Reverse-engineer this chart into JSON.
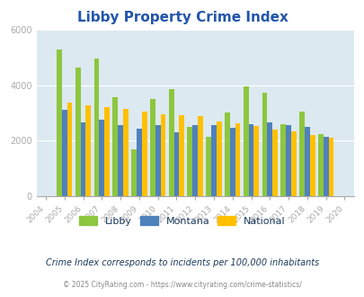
{
  "title": "Libby Property Crime Index",
  "all_years": [
    2004,
    2005,
    2006,
    2007,
    2008,
    2009,
    2010,
    2011,
    2012,
    2013,
    2014,
    2015,
    2016,
    2017,
    2018,
    2019,
    2020
  ],
  "data_years": [
    2005,
    2006,
    2007,
    2008,
    2009,
    2010,
    2011,
    2012,
    2013,
    2014,
    2015,
    2016,
    2017,
    2018,
    2019
  ],
  "libby": [
    5300,
    4650,
    4950,
    3550,
    1680,
    3500,
    3850,
    2480,
    2150,
    3020,
    3950,
    3730,
    2580,
    3030,
    2220
  ],
  "montana": [
    3100,
    2660,
    2750,
    2570,
    2430,
    2550,
    2290,
    2560,
    2560,
    2450,
    2590,
    2660,
    2560,
    2480,
    2150
  ],
  "national": [
    3380,
    3280,
    3220,
    3130,
    3050,
    2950,
    2900,
    2870,
    2700,
    2620,
    2510,
    2380,
    2340,
    2200,
    2100
  ],
  "libby_color": "#8dc63f",
  "montana_color": "#4f81bd",
  "national_color": "#ffc000",
  "bg_color": "#dce9f0",
  "ylim": [
    0,
    6000
  ],
  "yticks": [
    0,
    2000,
    4000,
    6000
  ],
  "subtitle": "Crime Index corresponds to incidents per 100,000 inhabitants",
  "footer": "© 2025 CityRating.com - https://www.cityrating.com/crime-statistics/",
  "title_color": "#2255aa",
  "subtitle_color": "#1a3a5c",
  "footer_color": "#888888",
  "legend_text_color": "#1a3a5c"
}
